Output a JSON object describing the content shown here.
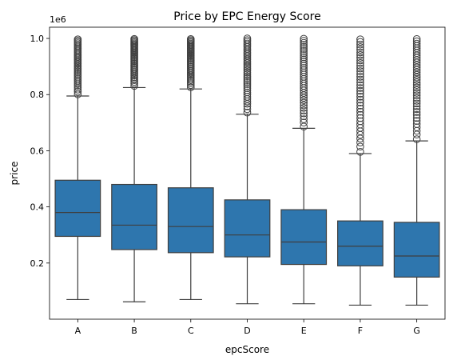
{
  "chart_data": {
    "type": "box",
    "title": "Price by EPC Energy Score",
    "xlabel": "epcScore",
    "ylabel": "price",
    "y_offset_label": "1e6",
    "y_ticks": [
      0.2,
      0.4,
      0.6,
      0.8,
      1.0
    ],
    "y_tick_labels": [
      "0.2",
      "0.4",
      "0.6",
      "0.8",
      "1.0"
    ],
    "ylim": [
      0.0,
      1.04
    ],
    "box_color": "#2e76ae",
    "edge_color": "#3f3f3f",
    "grid": false,
    "categories": [
      "A",
      "B",
      "C",
      "D",
      "E",
      "F",
      "G"
    ],
    "boxes": [
      {
        "category": "A",
        "whislo": 0.07,
        "q1": 0.295,
        "med": 0.38,
        "q3": 0.495,
        "whishi": 0.795,
        "fliers_from": 0.795
      },
      {
        "category": "B",
        "whislo": 0.062,
        "q1": 0.248,
        "med": 0.335,
        "q3": 0.48,
        "whishi": 0.825,
        "fliers_from": 0.825
      },
      {
        "category": "C",
        "whislo": 0.07,
        "q1": 0.237,
        "med": 0.33,
        "q3": 0.468,
        "whishi": 0.82,
        "fliers_from": 0.82
      },
      {
        "category": "D",
        "whislo": 0.055,
        "q1": 0.222,
        "med": 0.3,
        "q3": 0.425,
        "whishi": 0.73,
        "fliers_from": 0.73
      },
      {
        "category": "E",
        "whislo": 0.055,
        "q1": 0.195,
        "med": 0.275,
        "q3": 0.39,
        "whishi": 0.68,
        "fliers_from": 0.68
      },
      {
        "category": "F",
        "whislo": 0.05,
        "q1": 0.19,
        "med": 0.26,
        "q3": 0.35,
        "whishi": 0.59,
        "fliers_from": 0.59
      },
      {
        "category": "G",
        "whislo": 0.05,
        "q1": 0.15,
        "med": 0.225,
        "q3": 0.345,
        "whishi": 0.635,
        "fliers_from": 0.635
      }
    ]
  }
}
